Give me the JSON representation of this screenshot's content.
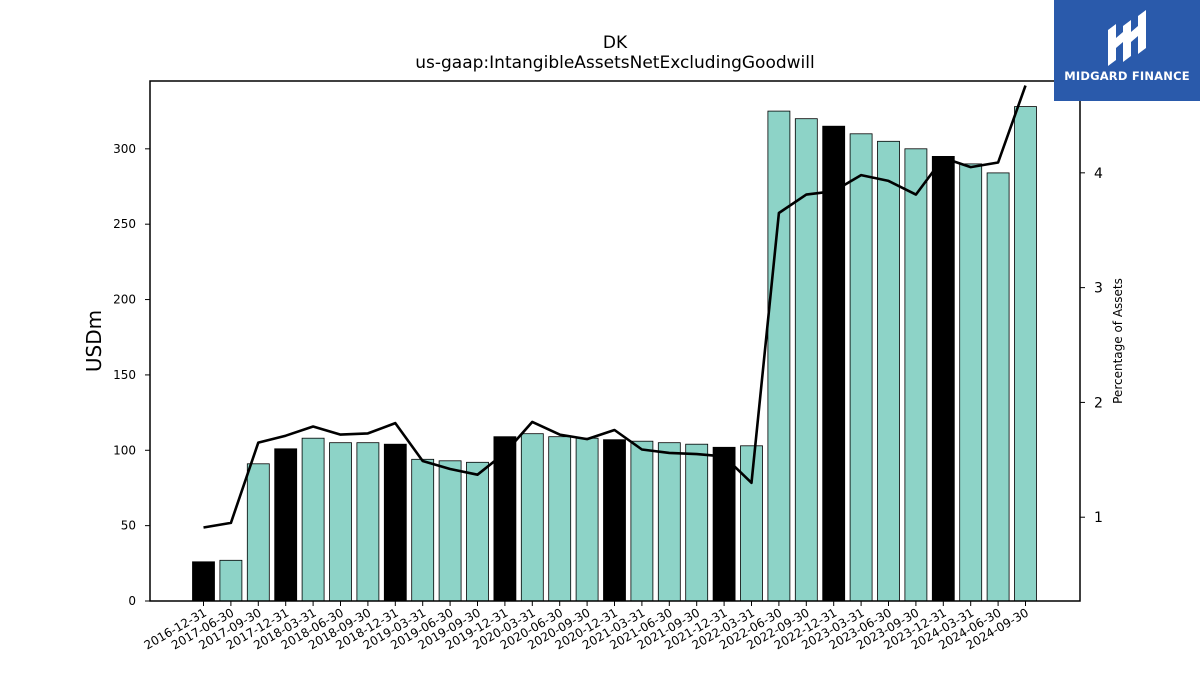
{
  "logo": {
    "text": "MIDGARD FINANCE",
    "color": "#2a5aab"
  },
  "chart_data": {
    "type": "bar",
    "title": "DK",
    "subtitle": "us-gaap:IntangibleAssetsNetExcludingGoodwill",
    "ylabel": "USDm",
    "ylabel_right": "Percentage of Assets",
    "ylim": [
      0,
      345
    ],
    "ylim_right": [
      0.27,
      4.8
    ],
    "yticks": [
      0,
      50,
      100,
      150,
      200,
      250,
      300
    ],
    "yticks_right": [
      1,
      2,
      3,
      4
    ],
    "categories": [
      "2016-12-31",
      "2017-06-30",
      "2017-09-30",
      "2017-12-31",
      "2018-03-31",
      "2018-06-30",
      "2018-09-30",
      "2018-12-31",
      "2019-03-31",
      "2019-06-30",
      "2019-09-30",
      "2019-12-31",
      "2020-03-31",
      "2020-06-30",
      "2020-09-30",
      "2020-12-31",
      "2021-03-31",
      "2021-06-30",
      "2021-09-30",
      "2021-12-31",
      "2022-03-31",
      "2022-06-30",
      "2022-09-30",
      "2022-12-31",
      "2023-03-31",
      "2023-06-30",
      "2023-09-30",
      "2023-12-31",
      "2024-03-31",
      "2024-06-30",
      "2024-09-30"
    ],
    "series": [
      {
        "type": "bar",
        "values": [
          26,
          27,
          91,
          101,
          108,
          105,
          105,
          104,
          94,
          93,
          92,
          109,
          111,
          109,
          108,
          107,
          106,
          105,
          104,
          102,
          103,
          325,
          320,
          315,
          310,
          305,
          300,
          295,
          290,
          284,
          328
        ],
        "highlight": [
          true,
          false,
          false,
          true,
          false,
          false,
          false,
          true,
          false,
          false,
          false,
          true,
          false,
          false,
          false,
          true,
          false,
          false,
          false,
          true,
          false,
          false,
          false,
          true,
          false,
          false,
          false,
          true,
          false,
          false,
          false
        ]
      },
      {
        "type": "line",
        "axis": "right",
        "values": [
          0.91,
          0.95,
          1.65,
          1.71,
          1.79,
          1.72,
          1.73,
          1.82,
          1.49,
          1.42,
          1.37,
          1.56,
          1.83,
          1.72,
          1.68,
          1.76,
          1.59,
          1.56,
          1.55,
          1.53,
          1.3,
          3.65,
          3.81,
          3.84,
          3.98,
          3.93,
          3.81,
          4.13,
          4.05,
          4.09,
          4.76
        ]
      }
    ],
    "colors": {
      "bar": "#8dd3c7",
      "bar_highlight": "#000000",
      "line": "#000000"
    }
  }
}
